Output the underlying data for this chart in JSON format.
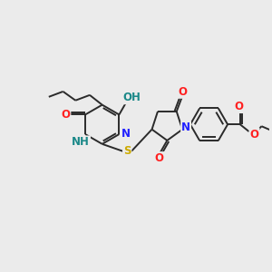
{
  "background_color": "#ebebeb",
  "bond_color": "#2a2a2a",
  "atom_colors": {
    "N": "#2121ff",
    "O": "#ff2020",
    "S": "#ccaa00",
    "OH": "#1a8888",
    "NH": "#1a8888",
    "C": "#2a2a2a"
  },
  "font_size_atom": 8.5,
  "fig_size": [
    3.0,
    3.0
  ],
  "dpi": 100,
  "lw": 1.4
}
